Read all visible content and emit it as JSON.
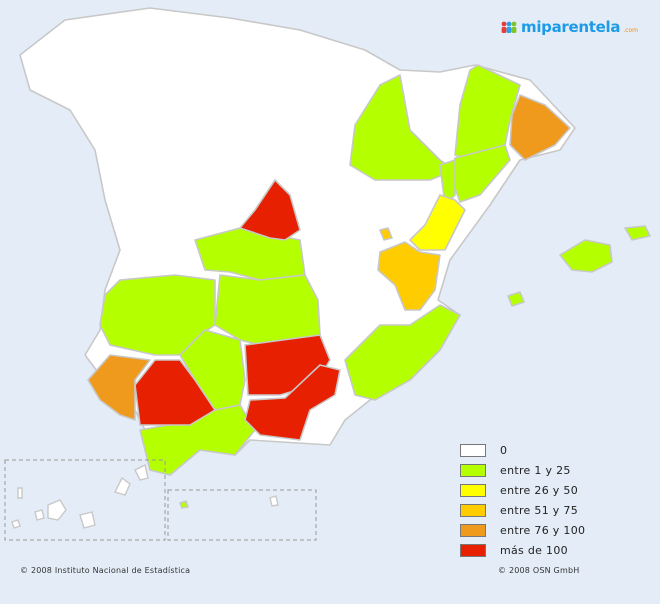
{
  "colors": {
    "background": "#e4edf7",
    "cat_0": "#ffffff",
    "cat_1_25": "#b4ff00",
    "cat_26_50": "#ffff00",
    "cat_51_75": "#ffcc00",
    "cat_76_100": "#ef9a1c",
    "cat_100_plus": "#e62000",
    "logo_text": "#1e9be6",
    "province_border": "#c8c8c8"
  },
  "logo": {
    "icon": "people-group-icon",
    "text": "miparentela",
    "suffix": ".com"
  },
  "legend": {
    "items": [
      {
        "label": "0",
        "color": "#ffffff"
      },
      {
        "label": "entre 1 y 25",
        "color": "#b4ff00"
      },
      {
        "label": "entre 26 y 50",
        "color": "#ffff00"
      },
      {
        "label": "entre 51 y 75",
        "color": "#ffcc00"
      },
      {
        "label": "entre 76 y 100",
        "color": "#ef9a1c"
      },
      {
        "label": "más de 100",
        "color": "#e62000"
      }
    ]
  },
  "footer": {
    "left": "© 2008 Instituto Nacional de Estadística",
    "right": "© 2008 OSN GmbH"
  }
}
